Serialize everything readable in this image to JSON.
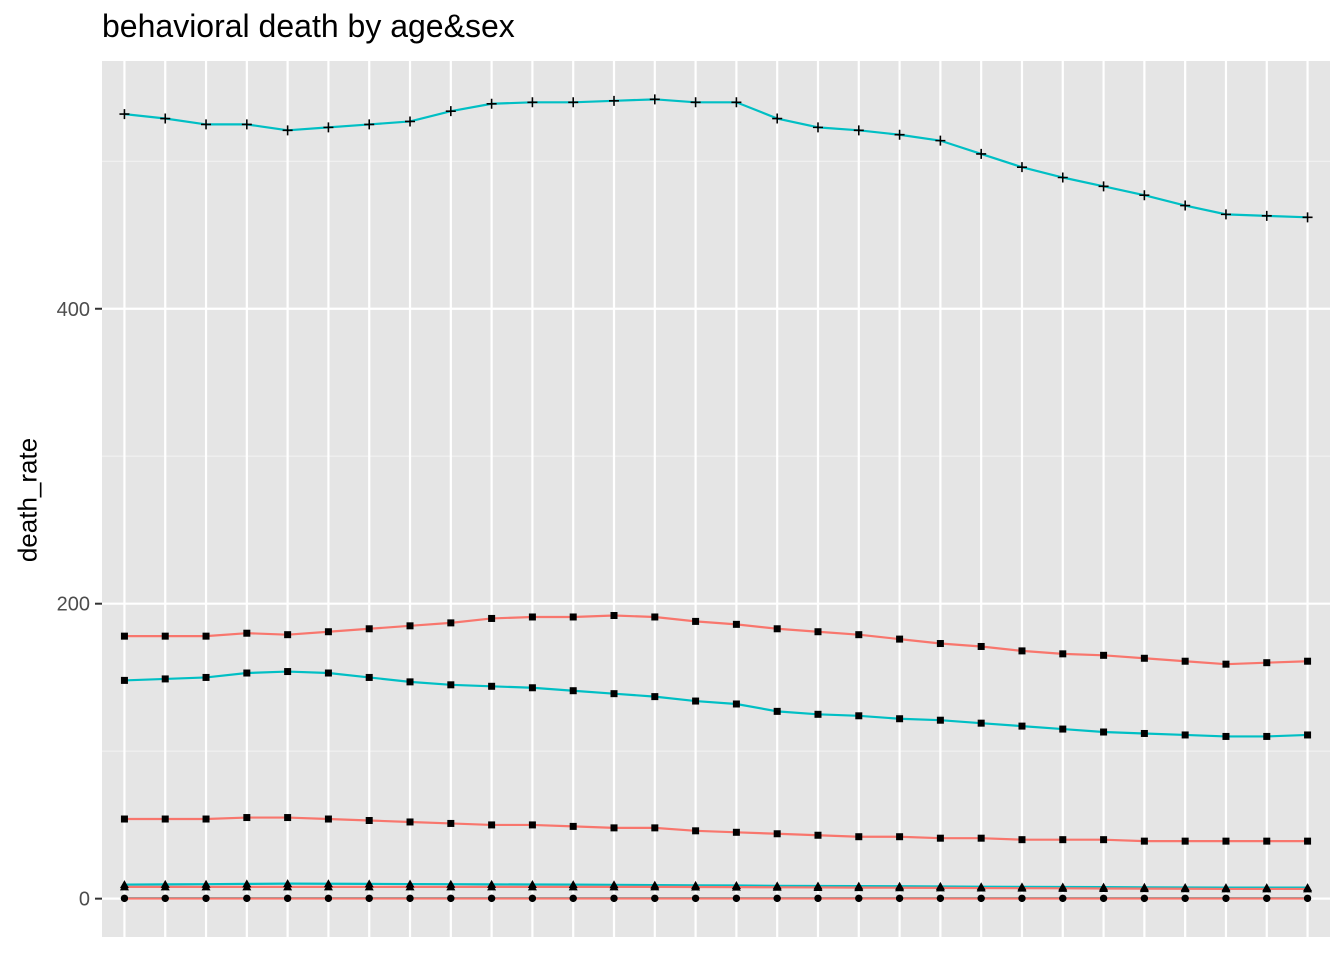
{
  "chart_data": {
    "type": "line",
    "title": "behavioral death by age&sex",
    "xlabel": "",
    "ylabel": "death_rate",
    "x": [
      1,
      2,
      3,
      4,
      5,
      6,
      7,
      8,
      9,
      10,
      11,
      12,
      13,
      14,
      15,
      16,
      17,
      18,
      19,
      20,
      21,
      22,
      23,
      24,
      25,
      26,
      27,
      28,
      29,
      30
    ],
    "xlim": [
      0.45,
      30.55
    ],
    "ylim": [
      -26,
      568
    ],
    "yticks": [
      0,
      200,
      400
    ],
    "grid": true,
    "legend": "none",
    "background": "#e5e5e5",
    "series": [
      {
        "color": "#00BFC4",
        "shape": "plus",
        "values": [
          532,
          529,
          525,
          525,
          521,
          523,
          525,
          527,
          534,
          539,
          540,
          540,
          541,
          542,
          540,
          540,
          529,
          523,
          521,
          518,
          514,
          505,
          496,
          489,
          483,
          477,
          470,
          464,
          463,
          462
        ]
      },
      {
        "color": "#F8766D",
        "shape": "square",
        "values": [
          178,
          178,
          178,
          180,
          179,
          181,
          183,
          185,
          187,
          190,
          191,
          191,
          192,
          191,
          188,
          186,
          183,
          181,
          179,
          176,
          173,
          171,
          168,
          166,
          165,
          163,
          161,
          159,
          160,
          161
        ]
      },
      {
        "color": "#00BFC4",
        "shape": "square",
        "values": [
          148,
          149,
          150,
          153,
          154,
          153,
          150,
          147,
          145,
          144,
          143,
          141,
          139,
          137,
          134,
          132,
          127,
          125,
          124,
          122,
          121,
          119,
          117,
          115,
          113,
          112,
          111,
          110,
          110,
          111
        ]
      },
      {
        "color": "#F8766D",
        "shape": "square",
        "values": [
          54,
          54,
          54,
          55,
          55,
          54,
          53,
          52,
          51,
          50,
          50,
          49,
          48,
          48,
          46,
          45,
          44,
          43,
          42,
          42,
          41,
          41,
          40,
          40,
          40,
          39,
          39,
          39,
          39,
          39
        ]
      },
      {
        "color": "#00BFC4",
        "shape": "triangle",
        "values": [
          9.5,
          9.7,
          9.8,
          10,
          10.2,
          10.1,
          10,
          9.9,
          9.8,
          9.7,
          9.6,
          9.5,
          9.4,
          9.2,
          9,
          8.9,
          8.7,
          8.6,
          8.5,
          8.4,
          8.3,
          8.1,
          8,
          7.9,
          7.8,
          7.7,
          7.6,
          7.5,
          7.5,
          7.5
        ]
      },
      {
        "color": "#F8766D",
        "shape": "triangle",
        "values": [
          8,
          8,
          8,
          8,
          8,
          8,
          8,
          8,
          8,
          8,
          8,
          8,
          8,
          8,
          7.9,
          7.8,
          7.7,
          7.6,
          7.5,
          7.4,
          7.3,
          7.2,
          7.1,
          7,
          6.9,
          6.8,
          6.7,
          6.6,
          6.6,
          6.6
        ]
      },
      {
        "color": "#00BFC4",
        "shape": "circle",
        "values": [
          0.3,
          0.3,
          0.3,
          0.3,
          0.3,
          0.3,
          0.3,
          0.3,
          0.3,
          0.3,
          0.3,
          0.3,
          0.3,
          0.3,
          0.3,
          0.3,
          0.3,
          0.3,
          0.3,
          0.3,
          0.3,
          0.3,
          0.3,
          0.3,
          0.3,
          0.3,
          0.3,
          0.3,
          0.3,
          0.3
        ]
      },
      {
        "color": "#F8766D",
        "shape": "circle",
        "values": [
          0.1,
          0.1,
          0.1,
          0.1,
          0.1,
          0.1,
          0.1,
          0.1,
          0.1,
          0.1,
          0.1,
          0.1,
          0.1,
          0.1,
          0.1,
          0.1,
          0.1,
          0.1,
          0.1,
          0.1,
          0.1,
          0.1,
          0.1,
          0.1,
          0.1,
          0.1,
          0.1,
          0.1,
          0.1,
          0.1
        ]
      }
    ]
  }
}
